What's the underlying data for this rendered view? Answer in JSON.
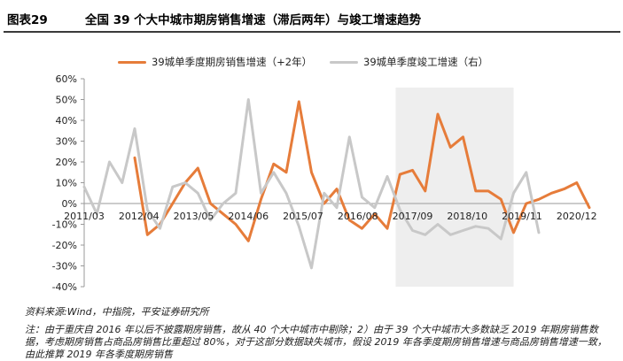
{
  "figure_number": "图表29",
  "figure_title": "全国 39 个大中城市期房销售增速（滞后两年）与竣工增速趋势",
  "source": "资料来源:Wind，中指院，平安证券研究所",
  "note": "注：由于重庆自 2016 年以后不披露期房销售，故从 40 个大中城市中剔除；2）由于 39 个大中城市大多数缺乏 2019 年期房销售数据，考虑期房销售占商品房销售比重超过 80%，对于这部分数据缺失城市，假设 2019 年各季度期房销售增速与商品房销售增速一致，由此推算 2019 年各季度期房销售",
  "colors": {
    "orange": "#e67c3a",
    "gray": "#c8c8c8",
    "shade": "#eeeeee",
    "axis": "#999999"
  },
  "chart_data": {
    "type": "line",
    "x_ticks": [
      "2011/03",
      "2012/04",
      "2013/05",
      "2014/06",
      "2015/07",
      "2016/08",
      "2017/09",
      "2018/10",
      "2019/11",
      "2020/12"
    ],
    "y_ticks": [
      "60%",
      "50%",
      "40%",
      "30%",
      "20%",
      "10%",
      "0%",
      "-10%",
      "-20%",
      "-30%",
      "-40%"
    ],
    "ylim": [
      -40,
      60
    ],
    "x_range": [
      "2011-03",
      "2021-03"
    ],
    "shaded_period": [
      "2017-05",
      "2019-09"
    ],
    "series": [
      {
        "name": "39城单季度期房销售增速（+2年）",
        "axis": "left",
        "color": "#e67c3a",
        "points": [
          [
            "2012-03",
            22
          ],
          [
            "2012-06",
            -15
          ],
          [
            "2012-09",
            -10
          ],
          [
            "2012-12",
            0
          ],
          [
            "2013-03",
            10
          ],
          [
            "2013-06",
            17
          ],
          [
            "2013-09",
            0
          ],
          [
            "2013-12",
            -5
          ],
          [
            "2014-03",
            -10
          ],
          [
            "2014-06",
            -18
          ],
          [
            "2014-09",
            2
          ],
          [
            "2014-12",
            19
          ],
          [
            "2015-03",
            15
          ],
          [
            "2015-06",
            49
          ],
          [
            "2015-09",
            15
          ],
          [
            "2015-12",
            0
          ],
          [
            "2016-03",
            7
          ],
          [
            "2016-06",
            -8
          ],
          [
            "2016-09",
            -12
          ],
          [
            "2016-12",
            -5
          ],
          [
            "2017-03",
            -12
          ],
          [
            "2017-06",
            14
          ],
          [
            "2017-09",
            16
          ],
          [
            "2017-12",
            6
          ],
          [
            "2018-03",
            43
          ],
          [
            "2018-06",
            27
          ],
          [
            "2018-09",
            32
          ],
          [
            "2018-12",
            6
          ],
          [
            "2019-03",
            6
          ],
          [
            "2019-06",
            2
          ],
          [
            "2019-09",
            -14
          ],
          [
            "2019-12",
            0
          ],
          [
            "2020-03",
            2
          ],
          [
            "2020-06",
            5
          ],
          [
            "2020-09",
            7
          ],
          [
            "2020-12",
            10
          ],
          [
            "2021-03",
            -2
          ]
        ]
      },
      {
        "name": "39城单季度竣工增速（右）",
        "axis": "left",
        "color": "#c8c8c8",
        "points": [
          [
            "2011-03",
            8
          ],
          [
            "2011-06",
            -5
          ],
          [
            "2011-09",
            20
          ],
          [
            "2011-12",
            10
          ],
          [
            "2012-03",
            36
          ],
          [
            "2012-06",
            -3
          ],
          [
            "2012-09",
            -12
          ],
          [
            "2012-12",
            8
          ],
          [
            "2013-03",
            10
          ],
          [
            "2013-06",
            5
          ],
          [
            "2013-09",
            -8
          ],
          [
            "2013-12",
            0
          ],
          [
            "2014-03",
            5
          ],
          [
            "2014-06",
            50
          ],
          [
            "2014-09",
            5
          ],
          [
            "2014-12",
            15
          ],
          [
            "2015-03",
            5
          ],
          [
            "2015-06",
            -11
          ],
          [
            "2015-09",
            -31
          ],
          [
            "2015-12",
            5
          ],
          [
            "2016-03",
            -2
          ],
          [
            "2016-06",
            32
          ],
          [
            "2016-09",
            3
          ],
          [
            "2016-12",
            -2
          ],
          [
            "2017-03",
            13
          ],
          [
            "2017-06",
            -3
          ],
          [
            "2017-09",
            -13
          ],
          [
            "2017-12",
            -15
          ],
          [
            "2018-03",
            -10
          ],
          [
            "2018-06",
            -15
          ],
          [
            "2018-09",
            -13
          ],
          [
            "2018-12",
            -11
          ],
          [
            "2019-03",
            -12
          ],
          [
            "2019-06",
            -17
          ],
          [
            "2019-09",
            5
          ],
          [
            "2019-12",
            15
          ],
          [
            "2020-03",
            -14
          ]
        ]
      }
    ]
  }
}
